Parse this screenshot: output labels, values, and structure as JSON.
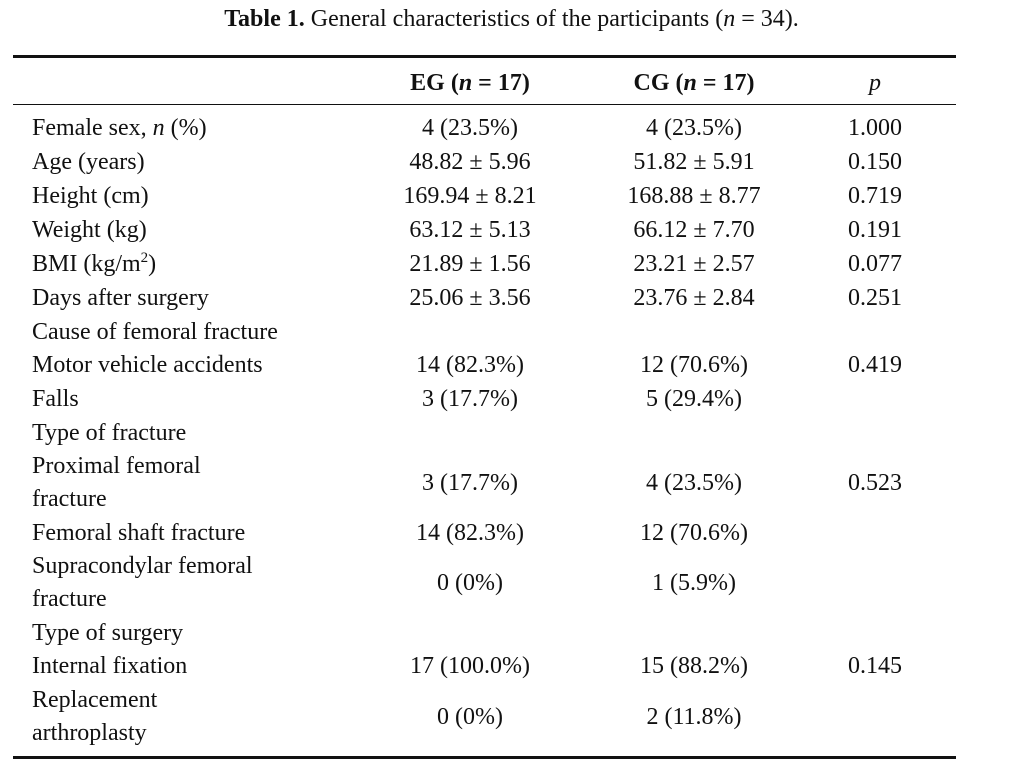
{
  "caption": {
    "label": "Table 1.",
    "text_before_n": " General characteristics of the participants (",
    "n_symbol": "n",
    "text_after_n": " = 34)."
  },
  "header": {
    "eg_prefix": "EG (",
    "eg_n": "n",
    "eg_suffix": " = 17)",
    "cg_prefix": "CG (",
    "cg_n": "n",
    "cg_suffix": " = 17)",
    "p": "p"
  },
  "rows": [
    {
      "label_main": "Female sex, ",
      "label_italic": "n",
      "label_tail": " (%)",
      "eg": "4 (23.5%)",
      "cg": "4 (23.5%)",
      "p": "1.000"
    },
    {
      "label": "Age (years)",
      "eg": "48.82 ± 5.96",
      "cg": "51.82 ± 5.91",
      "p": "0.150"
    },
    {
      "label": "Height (cm)",
      "eg": "169.94 ± 8.21",
      "cg": "168.88 ± 8.77",
      "p": "0.719"
    },
    {
      "label": "Weight (kg)",
      "eg": "63.12 ± 5.13",
      "cg": "66.12 ± 7.70",
      "p": "0.191"
    },
    {
      "label_main": "BMI (kg/m",
      "label_sup": "2",
      "label_tail": ")",
      "eg": "21.89 ± 1.56",
      "cg": "23.21 ± 2.57",
      "p": "0.077"
    },
    {
      "label": "Days after surgery",
      "eg": "25.06 ± 3.56",
      "cg": "23.76 ± 2.84",
      "p": "0.251"
    },
    {
      "label": "Cause of femoral fracture",
      "eg": "",
      "cg": "",
      "p": ""
    },
    {
      "label": "Motor vehicle accidents",
      "eg": "14 (82.3%)",
      "cg": "12 (70.6%)",
      "p": "0.419"
    },
    {
      "label": "Falls",
      "eg": "3 (17.7%)",
      "cg": "5 (29.4%)",
      "p": ""
    },
    {
      "label": "Type of fracture",
      "eg": "",
      "cg": "",
      "p": ""
    },
    {
      "label": "Proximal femoral fracture",
      "eg": "3 (17.7%)",
      "cg": "4 (23.5%)",
      "p": "0.523"
    },
    {
      "label": "Femoral shaft fracture",
      "eg": "14 (82.3%)",
      "cg": "12 (70.6%)",
      "p": ""
    },
    {
      "label": "Supracondylar femoral fracture",
      "eg": "0 (0%)",
      "cg": "1 (5.9%)",
      "p": ""
    },
    {
      "label": "Type of surgery",
      "eg": "",
      "cg": "",
      "p": ""
    },
    {
      "label": "Internal fixation",
      "eg": "17 (100.0%)",
      "cg": "15 (88.2%)",
      "p": "0.145"
    },
    {
      "label": "Replacement arthroplasty",
      "eg": "0 (0%)",
      "cg": "2 (11.8%)",
      "p": ""
    }
  ]
}
